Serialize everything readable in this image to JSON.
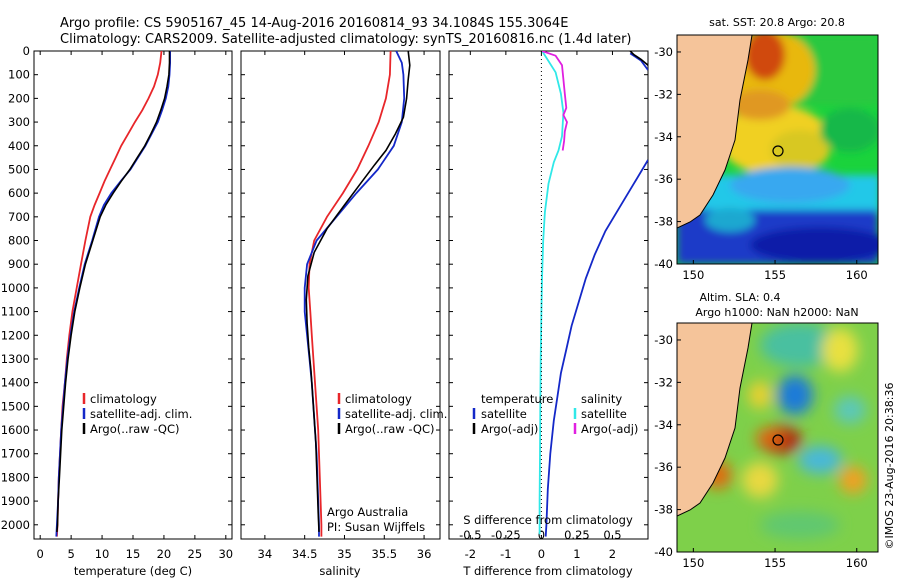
{
  "header": {
    "line1": "Argo profile: CS 5905167_45 14-Aug-2016 20160814_93 34.1084S 155.3064E",
    "line2": "Climatology: CARS2009. Satellite-adjusted climatology: synTS_20160816.nc (1.4d later)"
  },
  "side_text": "©IMOS 23-Aug-2016 20:38:36",
  "colors": {
    "red": "#e8262a",
    "blue": "#1428c8",
    "black": "#000000",
    "cyan": "#30e8e8",
    "magenta": "#e020e0",
    "land": "#f5c49a"
  },
  "chart_data": [
    {
      "type": "line",
      "xlabel": "temperature (deg C)",
      "xlim": [
        -1,
        31
      ],
      "xticks": [
        0,
        5,
        10,
        15,
        20,
        25,
        30
      ],
      "ylim": [
        2060,
        0
      ],
      "yticks": [
        0,
        100,
        200,
        300,
        400,
        500,
        600,
        700,
        800,
        900,
        1000,
        1100,
        1200,
        1300,
        1400,
        1500,
        1600,
        1700,
        1800,
        1900,
        2000
      ],
      "legend": [
        "climatology",
        "satellite-adj. clim.",
        "Argo(..raw -QC)"
      ],
      "legend_placement": "lower-left",
      "series": [
        {
          "name": "climatology",
          "color": "red",
          "points": [
            [
              19.6,
              0
            ],
            [
              19.4,
              50
            ],
            [
              19.0,
              100
            ],
            [
              18.4,
              150
            ],
            [
              17.5,
              200
            ],
            [
              16.5,
              250
            ],
            [
              15.3,
              300
            ],
            [
              14.2,
              350
            ],
            [
              13.1,
              400
            ],
            [
              12.2,
              450
            ],
            [
              11.3,
              500
            ],
            [
              10.4,
              550
            ],
            [
              9.6,
              600
            ],
            [
              8.8,
              650
            ],
            [
              8.1,
              700
            ],
            [
              7.3,
              800
            ],
            [
              6.6,
              900
            ],
            [
              5.9,
              1000
            ],
            [
              5.2,
              1100
            ],
            [
              4.7,
              1200
            ],
            [
              4.3,
              1300
            ],
            [
              4.0,
              1400
            ],
            [
              3.6,
              1500
            ],
            [
              3.4,
              1600
            ],
            [
              3.2,
              1700
            ],
            [
              3.0,
              1800
            ],
            [
              2.9,
              1900
            ],
            [
              2.8,
              2000
            ],
            [
              2.7,
              2050
            ]
          ]
        },
        {
          "name": "satellite-adj. clim.",
          "color": "blue",
          "points": [
            [
              21.0,
              0
            ],
            [
              21.0,
              50
            ],
            [
              20.9,
              100
            ],
            [
              20.7,
              150
            ],
            [
              20.3,
              200
            ],
            [
              19.7,
              250
            ],
            [
              19.0,
              300
            ],
            [
              18.0,
              350
            ],
            [
              17.0,
              400
            ],
            [
              15.8,
              450
            ],
            [
              14.6,
              500
            ],
            [
              13.0,
              550
            ],
            [
              11.5,
              600
            ],
            [
              10.3,
              650
            ],
            [
              9.5,
              700
            ],
            [
              8.4,
              800
            ],
            [
              7.2,
              900
            ],
            [
              6.3,
              1000
            ],
            [
              5.5,
              1100
            ],
            [
              4.9,
              1200
            ],
            [
              4.4,
              1300
            ],
            [
              4.0,
              1400
            ],
            [
              3.7,
              1500
            ],
            [
              3.4,
              1600
            ],
            [
              3.2,
              1700
            ],
            [
              3.0,
              1800
            ],
            [
              2.9,
              1900
            ],
            [
              2.7,
              2000
            ],
            [
              2.6,
              2050
            ]
          ]
        },
        {
          "name": "Argo(..raw -QC)",
          "color": "black",
          "points": [
            [
              20.9,
              0
            ],
            [
              20.9,
              50
            ],
            [
              20.8,
              100
            ],
            [
              20.5,
              150
            ],
            [
              20.1,
              200
            ],
            [
              19.5,
              250
            ],
            [
              18.8,
              300
            ],
            [
              17.9,
              350
            ],
            [
              16.9,
              400
            ],
            [
              15.7,
              450
            ],
            [
              14.5,
              500
            ],
            [
              13.1,
              550
            ],
            [
              11.8,
              600
            ],
            [
              10.6,
              650
            ],
            [
              9.7,
              700
            ],
            [
              8.5,
              800
            ],
            [
              7.3,
              900
            ],
            [
              6.4,
              1000
            ],
            [
              5.6,
              1100
            ],
            [
              5.0,
              1200
            ],
            [
              4.5,
              1300
            ],
            [
              4.1,
              1400
            ],
            [
              3.8,
              1500
            ],
            [
              3.5,
              1600
            ],
            [
              3.3,
              1700
            ],
            [
              3.1,
              1800
            ],
            [
              2.9,
              1900
            ],
            [
              2.8,
              2000
            ],
            [
              2.7,
              2030
            ]
          ]
        }
      ]
    },
    {
      "type": "line",
      "xlabel": "salinity",
      "xlim": [
        33.7,
        36.2
      ],
      "xticks": [
        34,
        34.5,
        35,
        35.5,
        36
      ],
      "ylim": [
        2060,
        0
      ],
      "legend": [
        "climatology",
        "satellite-adj. clim.",
        "Argo(..raw -QC)"
      ],
      "legend_placement": "lower-right",
      "annotation": [
        "Argo Australia",
        "PI: Susan Wijffels"
      ],
      "series": [
        {
          "name": "climatology",
          "color": "red",
          "points": [
            [
              35.58,
              0
            ],
            [
              35.57,
              100
            ],
            [
              35.52,
              200
            ],
            [
              35.43,
              300
            ],
            [
              35.3,
              400
            ],
            [
              35.16,
              500
            ],
            [
              34.98,
              600
            ],
            [
              34.78,
              700
            ],
            [
              34.62,
              800
            ],
            [
              34.56,
              900
            ],
            [
              34.55,
              1000
            ],
            [
              34.57,
              1100
            ],
            [
              34.59,
              1200
            ],
            [
              34.61,
              1300
            ],
            [
              34.63,
              1400
            ],
            [
              34.65,
              1500
            ],
            [
              34.67,
              1600
            ],
            [
              34.68,
              1700
            ],
            [
              34.69,
              1800
            ],
            [
              34.7,
              1900
            ],
            [
              34.71,
              2000
            ],
            [
              34.71,
              2050
            ]
          ]
        },
        {
          "name": "satellite-adj. clim.",
          "color": "blue",
          "points": [
            [
              35.65,
              0
            ],
            [
              35.72,
              50
            ],
            [
              35.74,
              100
            ],
            [
              35.75,
              200
            ],
            [
              35.72,
              300
            ],
            [
              35.62,
              400
            ],
            [
              35.42,
              500
            ],
            [
              35.15,
              600
            ],
            [
              34.9,
              700
            ],
            [
              34.65,
              800
            ],
            [
              34.53,
              900
            ],
            [
              34.5,
              1000
            ],
            [
              34.5,
              1100
            ],
            [
              34.53,
              1200
            ],
            [
              34.56,
              1300
            ],
            [
              34.59,
              1400
            ],
            [
              34.61,
              1500
            ],
            [
              34.63,
              1600
            ],
            [
              34.65,
              1700
            ],
            [
              34.66,
              1800
            ],
            [
              34.67,
              1900
            ],
            [
              34.68,
              2000
            ],
            [
              34.68,
              2050
            ]
          ]
        },
        {
          "name": "Argo(..raw -QC)",
          "color": "black",
          "points": [
            [
              35.8,
              0
            ],
            [
              35.82,
              60
            ],
            [
              35.8,
              120
            ],
            [
              35.78,
              200
            ],
            [
              35.74,
              280
            ],
            [
              35.64,
              350
            ],
            [
              35.52,
              420
            ],
            [
              35.38,
              480
            ],
            [
              35.2,
              560
            ],
            [
              35.0,
              650
            ],
            [
              34.78,
              750
            ],
            [
              34.62,
              850
            ],
            [
              34.54,
              950
            ],
            [
              34.52,
              1050
            ],
            [
              34.53,
              1150
            ],
            [
              34.55,
              1250
            ],
            [
              34.58,
              1350
            ],
            [
              34.6,
              1450
            ],
            [
              34.62,
              1550
            ],
            [
              34.64,
              1650
            ],
            [
              34.65,
              1750
            ],
            [
              34.66,
              1850
            ],
            [
              34.67,
              1950
            ],
            [
              34.68,
              2030
            ]
          ]
        }
      ]
    },
    {
      "type": "line",
      "xlabel": "T difference from climatology",
      "xlabel_top": "S difference from climatology",
      "xlim": [
        -2.6,
        3.0
      ],
      "xticks": [
        -2,
        -1,
        0,
        1,
        2
      ],
      "xticks_top": [
        -0.5,
        -0.25,
        0,
        0.25,
        0.5
      ],
      "ylim": [
        2060,
        0
      ],
      "legend_temperature": {
        "title": "temperature",
        "items": [
          "satellite",
          "Argo(-adj)"
        ]
      },
      "legend_salinity": {
        "title": "salinity",
        "items": [
          "satellite",
          "Argo(-adj)"
        ]
      },
      "series": [
        {
          "name": "temperature satellite",
          "color": "blue",
          "points": [
            [
              3.0,
              80
            ],
            [
              2.8,
              40
            ],
            [
              2.6,
              20
            ],
            [
              2.5,
              10
            ]
          ]
        },
        {
          "name": "temperature satellite (deep)",
          "color": "blue",
          "points": [
            [
              3.0,
              460
            ],
            [
              2.6,
              560
            ],
            [
              2.2,
              660
            ],
            [
              1.8,
              760
            ],
            [
              1.5,
              860
            ],
            [
              1.25,
              960
            ],
            [
              1.05,
              1060
            ],
            [
              0.85,
              1160
            ],
            [
              0.7,
              1260
            ],
            [
              0.55,
              1360
            ],
            [
              0.45,
              1460
            ],
            [
              0.35,
              1560
            ],
            [
              0.25,
              1700
            ],
            [
              0.18,
              1850
            ],
            [
              0.14,
              2000
            ],
            [
              0.12,
              2050
            ]
          ]
        },
        {
          "name": "temperature Argo(-adj)",
          "color": "black",
          "points": [
            [
              2.5,
              0
            ],
            [
              2.6,
              15
            ],
            [
              2.8,
              35
            ],
            [
              3.0,
              60
            ]
          ]
        },
        {
          "name": "salinity satellite",
          "color": "cyan",
          "points": [
            [
              0.02,
              0
            ],
            [
              0.4,
              90
            ],
            [
              0.55,
              180
            ],
            [
              0.62,
              260
            ],
            [
              0.58,
              360
            ],
            [
              0.48,
              420
            ],
            [
              0.35,
              470
            ],
            [
              0.2,
              560
            ],
            [
              0.1,
              680
            ],
            [
              0.05,
              800
            ],
            [
              0.02,
              950
            ],
            [
              0.0,
              1100
            ],
            [
              -0.02,
              1300
            ],
            [
              -0.03,
              1500
            ],
            [
              -0.04,
              1700
            ],
            [
              -0.05,
              1900
            ],
            [
              -0.05,
              2040
            ]
          ]
        },
        {
          "name": "salinity Argo(-adj)",
          "color": "magenta",
          "points": [
            [
              0.02,
              0
            ],
            [
              0.4,
              20
            ],
            [
              0.58,
              60
            ],
            [
              0.62,
              120
            ],
            [
              0.66,
              180
            ],
            [
              0.7,
              240
            ],
            [
              0.62,
              270
            ],
            [
              0.72,
              300
            ],
            [
              0.66,
              340
            ],
            [
              0.64,
              380
            ],
            [
              0.6,
              420
            ]
          ]
        }
      ]
    }
  ],
  "maps": [
    {
      "title": "sat. SST: 20.8  Argo: 20.8",
      "lon_ticks": [
        150,
        155,
        160
      ],
      "lat_ticks": [
        -30,
        -32,
        -34,
        -36,
        -38,
        -40
      ]
    },
    {
      "title_line1": "Altim. SLA: 0.4",
      "title_line2": "Argo h1000: NaN h2000: NaN",
      "lon_ticks": [
        150,
        155,
        160
      ],
      "lat_ticks": [
        -30,
        -32,
        -34,
        -36,
        -38,
        -40
      ]
    }
  ],
  "labels": {
    "panel1_xlabel": "temperature (deg C)",
    "panel2_xlabel": "salinity",
    "panel3_xlabel": "T difference from climatology",
    "panel3_xlabel_top": "S difference from climatology"
  }
}
